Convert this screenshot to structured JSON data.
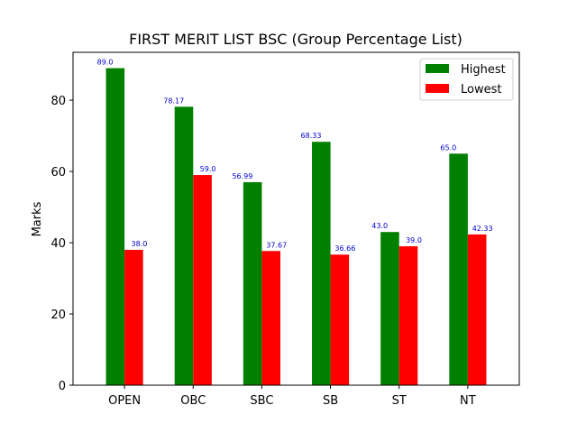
{
  "chart_data": {
    "type": "bar",
    "title": "FIRST MERIT LIST BSC (Group Percentage List)",
    "xlabel": "",
    "ylabel": "Marks",
    "categories": [
      "OPEN",
      "OBC",
      "SBC",
      "SB",
      "ST",
      "NT"
    ],
    "series": [
      {
        "name": "Highest",
        "color": "#008000",
        "values": [
          89.0,
          78.17,
          56.99,
          68.33,
          43.0,
          65.0
        ],
        "labels": [
          "89.0",
          "78.17",
          "56.99",
          "68.33",
          "43.0",
          "65.0"
        ]
      },
      {
        "name": "Lowest",
        "color": "#ff0000",
        "values": [
          38.0,
          59.0,
          37.67,
          36.66,
          39.0,
          42.33
        ],
        "labels": [
          "38.0",
          "59.0",
          "37.67",
          "36.66",
          "39.0",
          "42.33"
        ]
      }
    ],
    "ylim": [
      0,
      93.45
    ],
    "yticks": [
      0,
      20,
      40,
      60,
      80
    ],
    "ytick_labels": [
      "0",
      "20",
      "40",
      "60",
      "80"
    ],
    "data_label_color": "#0000cd",
    "legend_position": "top-right",
    "grid": false
  }
}
